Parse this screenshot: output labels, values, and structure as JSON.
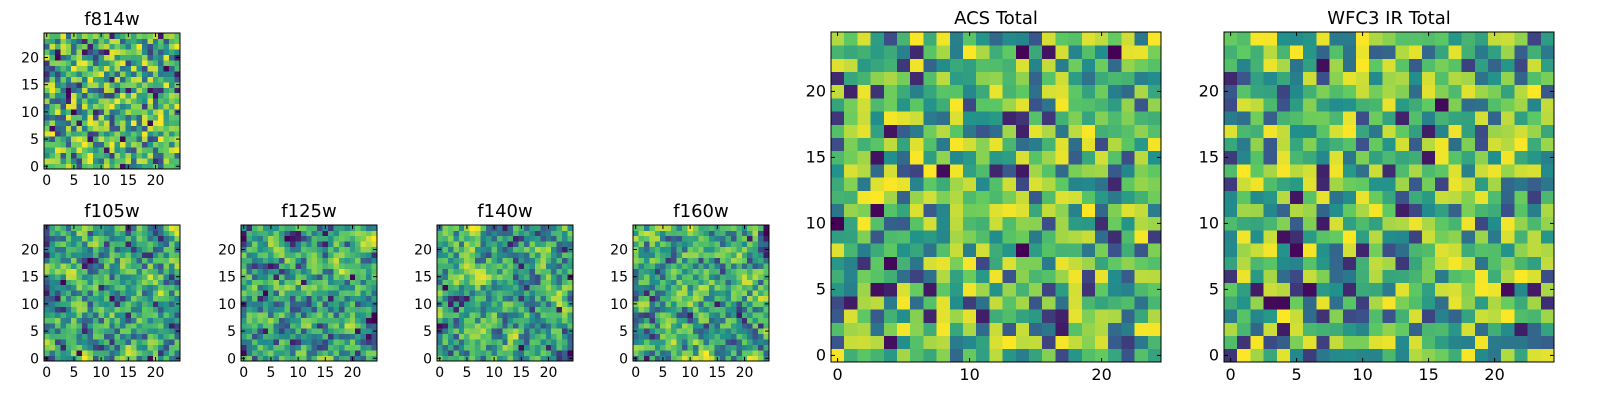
{
  "figure": {
    "colormap": "viridis",
    "colors": {
      "viridis": [
        "#440154",
        "#3b528b",
        "#21918c",
        "#5ec962",
        "#fde725"
      ],
      "frame": "#000000",
      "background": "#ffffff"
    }
  },
  "chart_data": [
    {
      "type": "heatmap",
      "id": "f814w",
      "title": "f814w",
      "grid_size": 25,
      "xlim": [
        0,
        24
      ],
      "ylim": [
        0,
        24
      ],
      "xticks": [
        0,
        5,
        10,
        15,
        20
      ],
      "yticks": [
        0,
        5,
        10,
        15,
        20
      ],
      "xtick_labels": [
        "0",
        "5",
        "10",
        "15",
        "20"
      ],
      "ytick_labels": [
        "0",
        "5",
        "10",
        "15",
        "20"
      ],
      "value_range": [
        0,
        1
      ],
      "seed": 11,
      "smoothness": 0
    },
    {
      "type": "heatmap",
      "id": "f105w",
      "title": "f105w",
      "grid_size": 25,
      "xlim": [
        0,
        24
      ],
      "ylim": [
        0,
        24
      ],
      "xticks": [
        0,
        5,
        10,
        15,
        20
      ],
      "yticks": [
        0,
        5,
        10,
        15,
        20
      ],
      "xtick_labels": [
        "0",
        "5",
        "10",
        "15",
        "20"
      ],
      "ytick_labels": [
        "0",
        "5",
        "10",
        "15",
        "20"
      ],
      "value_range": [
        0,
        1
      ],
      "seed": 23,
      "smoothness": 1
    },
    {
      "type": "heatmap",
      "id": "f125w",
      "title": "f125w",
      "grid_size": 25,
      "xlim": [
        0,
        24
      ],
      "ylim": [
        0,
        24
      ],
      "xticks": [
        0,
        5,
        10,
        15,
        20
      ],
      "yticks": [
        0,
        5,
        10,
        15,
        20
      ],
      "xtick_labels": [
        "0",
        "5",
        "10",
        "15",
        "20"
      ],
      "ytick_labels": [
        "0",
        "5",
        "10",
        "15",
        "20"
      ],
      "value_range": [
        0,
        1
      ],
      "seed": 37,
      "smoothness": 1
    },
    {
      "type": "heatmap",
      "id": "f140w",
      "title": "f140w",
      "grid_size": 25,
      "xlim": [
        0,
        24
      ],
      "ylim": [
        0,
        24
      ],
      "xticks": [
        0,
        5,
        10,
        15,
        20
      ],
      "yticks": [
        0,
        5,
        10,
        15,
        20
      ],
      "xtick_labels": [
        "0",
        "5",
        "10",
        "15",
        "20"
      ],
      "ytick_labels": [
        "0",
        "5",
        "10",
        "15",
        "20"
      ],
      "value_range": [
        0,
        1
      ],
      "seed": 41,
      "smoothness": 1
    },
    {
      "type": "heatmap",
      "id": "f160w",
      "title": "f160w",
      "grid_size": 25,
      "xlim": [
        0,
        24
      ],
      "ylim": [
        0,
        24
      ],
      "xticks": [
        0,
        5,
        10,
        15,
        20
      ],
      "yticks": [
        0,
        5,
        10,
        15,
        20
      ],
      "xtick_labels": [
        "0",
        "5",
        "10",
        "15",
        "20"
      ],
      "ytick_labels": [
        "0",
        "5",
        "10",
        "15",
        "20"
      ],
      "value_range": [
        0,
        1
      ],
      "seed": 53,
      "smoothness": 1
    },
    {
      "type": "heatmap",
      "id": "acs-total",
      "title": "ACS Total",
      "grid_size": 25,
      "xlim": [
        0,
        24
      ],
      "ylim": [
        0,
        24
      ],
      "xticks": [
        0,
        10,
        20
      ],
      "yticks": [
        0,
        5,
        10,
        15,
        20
      ],
      "xtick_labels": [
        "0",
        "10",
        "20"
      ],
      "ytick_labels": [
        "0",
        "5",
        "10",
        "15",
        "20"
      ],
      "value_range": [
        0,
        1
      ],
      "seed": 67,
      "smoothness": 0
    },
    {
      "type": "heatmap",
      "id": "wfc3-ir-total",
      "title": "WFC3 IR Total",
      "grid_size": 25,
      "xlim": [
        0,
        24
      ],
      "ylim": [
        0,
        24
      ],
      "xticks": [
        0,
        5,
        10,
        15,
        20
      ],
      "yticks": [
        0,
        5,
        10,
        15,
        20
      ],
      "xtick_labels": [
        "0",
        "5",
        "10",
        "15",
        "20"
      ],
      "ytick_labels": [
        "0",
        "5",
        "10",
        "15",
        "20"
      ],
      "value_range": [
        0,
        1
      ],
      "seed": 79,
      "smoothness": 0
    }
  ]
}
